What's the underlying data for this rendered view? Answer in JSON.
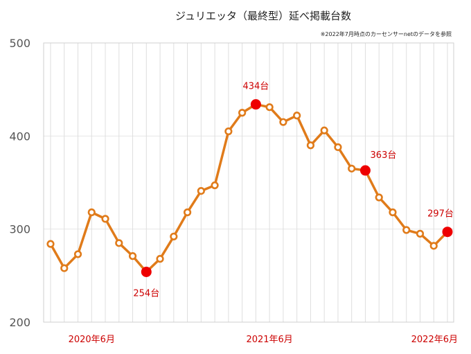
{
  "chart_data": {
    "type": "line",
    "title": "ジュリエッタ（最終型）延べ掲載台数",
    "note": "※2022年7月時点のカーセンサーnetのデータを参照",
    "ylim": [
      200,
      500
    ],
    "yticks": [
      "200",
      "300",
      "400",
      "500"
    ],
    "xtick_labels": [
      {
        "index": 3,
        "label": "2020年6月"
      },
      {
        "index": 16,
        "label": "2021年6月"
      },
      {
        "index": 29,
        "label": "2022年6月"
      }
    ],
    "grid": "vertical",
    "line_color": "#e07b1a",
    "highlight_color": "#ee0000",
    "label_color": "#cc0000",
    "values": [
      284,
      258,
      273,
      318,
      311,
      285,
      271,
      254,
      268,
      292,
      318,
      341,
      347,
      405,
      425,
      434,
      431,
      415,
      422,
      390,
      406,
      388,
      365,
      363,
      334,
      318,
      299,
      295,
      282,
      297
    ],
    "highlights": [
      {
        "index": 7,
        "label": "254台",
        "pos": "below"
      },
      {
        "index": 15,
        "label": "434台",
        "pos": "above"
      },
      {
        "index": 23,
        "label": "363台",
        "pos": "above-right"
      },
      {
        "index": 29,
        "label": "297台",
        "pos": "above"
      }
    ]
  }
}
